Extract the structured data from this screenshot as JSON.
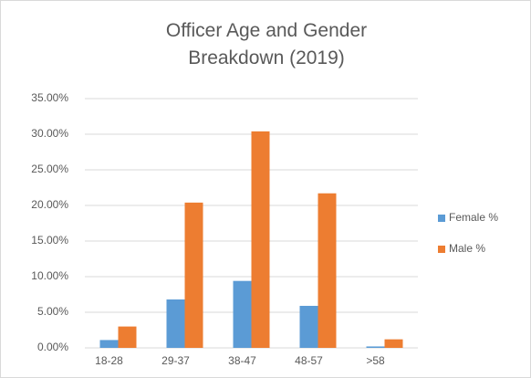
{
  "chart_data": {
    "type": "bar",
    "title": "Officer Age and Gender Breakdown (2019)",
    "categories": [
      "18-28",
      "29-37",
      "38-47",
      "48-57",
      ">58"
    ],
    "series": [
      {
        "name": "Female %",
        "color": "#5b9bd5",
        "values": [
          1.1,
          6.8,
          9.4,
          5.9,
          0.2
        ]
      },
      {
        "name": "Male %",
        "color": "#ed7d31",
        "values": [
          3.0,
          20.4,
          30.4,
          21.7,
          1.2
        ]
      }
    ],
    "ylim": [
      0,
      35
    ],
    "yticks": [
      {
        "value": 0,
        "label": "0.00%"
      },
      {
        "value": 5,
        "label": "5.00%"
      },
      {
        "value": 10,
        "label": "10.00%"
      },
      {
        "value": 15,
        "label": "15.00%"
      },
      {
        "value": 20,
        "label": "20.00%"
      },
      {
        "value": 25,
        "label": "25.00%"
      },
      {
        "value": 30,
        "label": "30.00%"
      },
      {
        "value": 35,
        "label": "35.00%"
      }
    ],
    "grid": true,
    "legend": "right"
  }
}
